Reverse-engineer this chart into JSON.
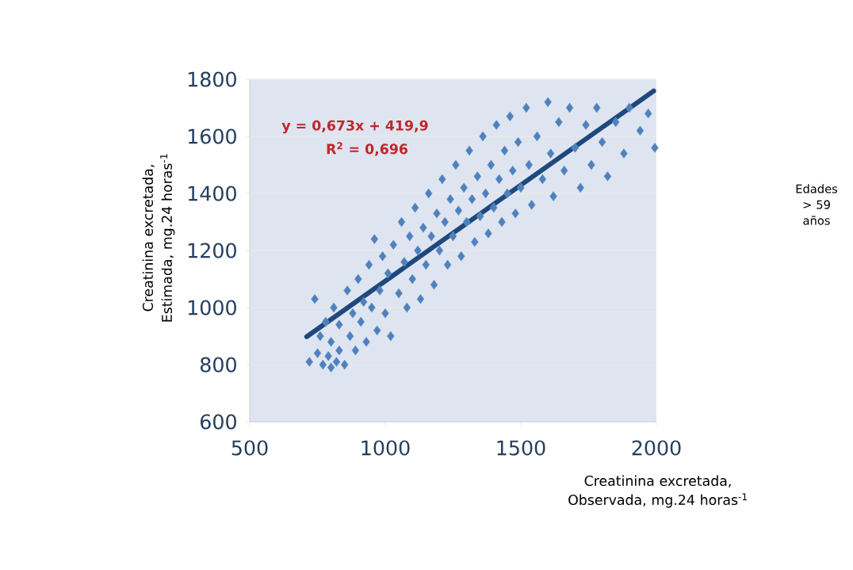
{
  "chart_data": {
    "type": "scatter",
    "xlabel": "Creatinina excretada, Observada, mg.24 horas$^{-1}$",
    "ylabel": "Creatinina excretada, Estimada, mg.24 horas$^{-1}$",
    "annotations": [
      "y = 0,673x + 419,9",
      "R$^{2}$ = 0,696",
      "Edades > 59 años"
    ],
    "xlim": [
      500,
      2000
    ],
    "xticks": [
      500,
      1000,
      1500,
      2000
    ],
    "ylim": [
      600,
      1800
    ],
    "yticks": [
      600,
      800,
      1000,
      1200,
      1400,
      1600,
      1800
    ],
    "grid": "y",
    "series": [
      {
        "marker": "diamond",
        "color": "#4f81bd",
        "x": [
          720,
          740,
          750,
          770,
          790,
          800,
          820,
          830,
          760,
          780,
          800,
          810,
          830,
          850,
          860,
          870,
          880,
          890,
          900,
          910,
          920,
          930,
          940,
          950,
          960,
          970,
          980,
          990,
          1000,
          1010,
          1020,
          1030,
          1050,
          1060,
          1070,
          1080,
          1090,
          1100,
          1110,
          1120,
          1130,
          1140,
          1150,
          1160,
          1170,
          1180,
          1190,
          1200,
          1210,
          1220,
          1230,
          1240,
          1250,
          1260,
          1270,
          1280,
          1290,
          1300,
          1310,
          1320,
          1330,
          1340,
          1350,
          1360,
          1370,
          1380,
          1390,
          1400,
          1410,
          1420,
          1430,
          1440,
          1450,
          1460,
          1470,
          1480,
          1490,
          1500,
          1520,
          1530,
          1540,
          1560,
          1580,
          1600,
          1610,
          1620,
          1640,
          1660,
          1680,
          1700,
          1720,
          1740,
          1760,
          1780,
          1800,
          1820,
          1850,
          1880,
          1900,
          1940,
          1970,
          1994
        ],
        "values": [
          810,
          1030,
          840,
          800,
          830,
          790,
          810,
          850,
          900,
          950,
          880,
          1000,
          940,
          800,
          1060,
          900,
          980,
          850,
          1100,
          950,
          1020,
          880,
          1150,
          1000,
          1240,
          920,
          1060,
          1180,
          980,
          1120,
          900,
          1220,
          1050,
          1300,
          1160,
          1000,
          1250,
          1100,
          1350,
          1200,
          1030,
          1280,
          1150,
          1400,
          1250,
          1080,
          1330,
          1200,
          1450,
          1300,
          1150,
          1380,
          1250,
          1500,
          1340,
          1180,
          1420,
          1300,
          1550,
          1380,
          1230,
          1460,
          1320,
          1600,
          1400,
          1260,
          1500,
          1350,
          1640,
          1450,
          1300,
          1550,
          1400,
          1670,
          1480,
          1330,
          1580,
          1420,
          1700,
          1500,
          1360,
          1600,
          1450,
          1720,
          1540,
          1390,
          1650,
          1480,
          1700,
          1560,
          1420,
          1640,
          1500,
          1700,
          1580,
          1460,
          1650,
          1540,
          1700,
          1620,
          1680,
          1560
        ]
      },
      {
        "type": "line",
        "marker": "none",
        "line_style": "solid",
        "color": "#1f497d",
        "x": [
          710,
          1990
        ],
        "values": [
          898,
          1759
        ]
      }
    ]
  }
}
